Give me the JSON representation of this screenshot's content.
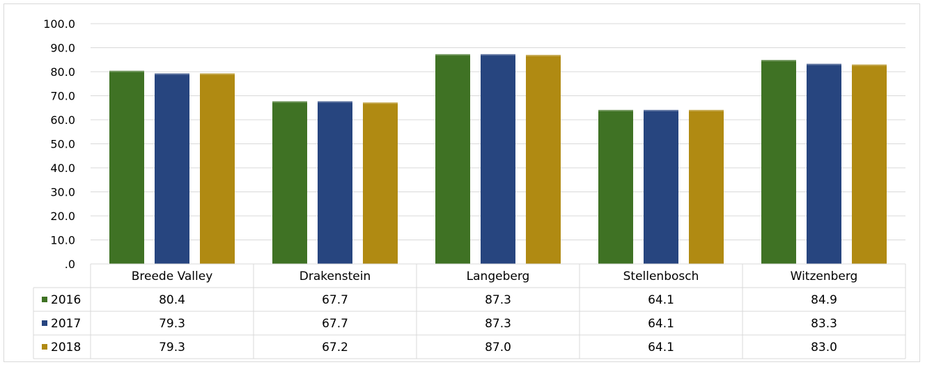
{
  "chart_data": {
    "type": "bar",
    "categories": [
      "Breede Valley",
      "Drakenstein",
      "Langeberg",
      "Stellenbosch",
      "Witzenberg"
    ],
    "series": [
      {
        "name": "2016",
        "color": "#3f7224",
        "values": [
          80.4,
          67.7,
          87.3,
          64.1,
          84.9
        ],
        "labels": [
          "80.4",
          "67.7",
          "87.3",
          "64.1",
          "84.9"
        ]
      },
      {
        "name": "2017",
        "color": "#27457f",
        "values": [
          79.3,
          67.7,
          87.3,
          64.1,
          83.3
        ],
        "labels": [
          "79.3",
          "67.7",
          "87.3",
          "64.1",
          "83.3"
        ]
      },
      {
        "name": "2018",
        "color": "#b08a12",
        "values": [
          79.3,
          67.2,
          87.0,
          64.1,
          83.0
        ],
        "labels": [
          "79.3",
          "67.2",
          "87.0",
          "64.1",
          "83.0"
        ]
      }
    ],
    "y_ticks": [
      ".0",
      "10.0",
      "20.0",
      "30.0",
      "40.0",
      "50.0",
      "60.0",
      "70.0",
      "80.0",
      "90.0",
      "100.0"
    ],
    "ylim": [
      0,
      100
    ],
    "grid": true,
    "legend": "data-table"
  }
}
